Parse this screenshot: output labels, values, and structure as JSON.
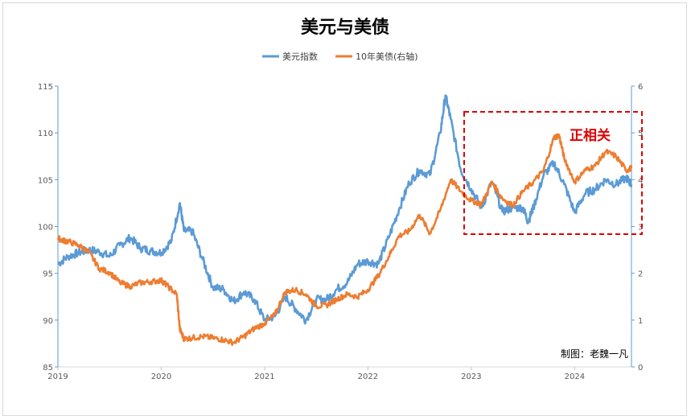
{
  "chart_data": {
    "type": "line",
    "title": "美元与美债",
    "legend_position": "top",
    "grid": false,
    "x_axis": {
      "ticks": [
        "2019",
        "2020",
        "2021",
        "2022",
        "2023",
        "2024"
      ],
      "range": [
        2019.0,
        2024.55
      ]
    },
    "y_left": {
      "ticks": [
        "85",
        "90",
        "95",
        "100",
        "105",
        "110",
        "115"
      ],
      "range": [
        85,
        115
      ]
    },
    "y_right": {
      "ticks": [
        "0",
        "1",
        "2",
        "3",
        "4",
        "5",
        "6"
      ],
      "range": [
        0,
        6
      ]
    },
    "series": [
      {
        "name": "美元指数",
        "axis": "left",
        "color": "#5b9bd5",
        "x": [
          2019.0,
          2019.1,
          2019.2,
          2019.3,
          2019.4,
          2019.5,
          2019.6,
          2019.7,
          2019.8,
          2019.9,
          2020.0,
          2020.1,
          2020.18,
          2020.22,
          2020.3,
          2020.4,
          2020.5,
          2020.6,
          2020.7,
          2020.8,
          2020.9,
          2021.0,
          2021.1,
          2021.2,
          2021.3,
          2021.4,
          2021.5,
          2021.6,
          2021.7,
          2021.8,
          2021.9,
          2022.0,
          2022.1,
          2022.2,
          2022.3,
          2022.4,
          2022.5,
          2022.6,
          2022.7,
          2022.75,
          2022.8,
          2022.9,
          2023.0,
          2023.1,
          2023.2,
          2023.3,
          2023.4,
          2023.5,
          2023.55,
          2023.6,
          2023.7,
          2023.8,
          2023.9,
          2024.0,
          2024.1,
          2024.2,
          2024.3,
          2024.4,
          2024.5,
          2024.55
        ],
        "values": [
          96.0,
          96.8,
          97.2,
          97.5,
          97.3,
          96.8,
          98.0,
          98.8,
          97.7,
          97.4,
          97.2,
          98.5,
          102.5,
          99.5,
          99.5,
          96.5,
          93.5,
          93.3,
          92.0,
          93.0,
          92.2,
          90.0,
          90.4,
          92.5,
          91.2,
          90.0,
          92.2,
          92.2,
          93.3,
          94.0,
          96.0,
          96.3,
          96.0,
          98.8,
          101.8,
          104.7,
          106.0,
          105.5,
          110.0,
          114.0,
          111.5,
          106.0,
          104.0,
          102.0,
          104.8,
          101.6,
          102.0,
          102.0,
          100.5,
          102.0,
          105.5,
          106.8,
          104.5,
          101.5,
          103.5,
          104.0,
          105.0,
          104.5,
          105.2,
          104.5
        ]
      },
      {
        "name": "10年美债(右轴)",
        "axis": "right",
        "color": "#ed7d31",
        "x": [
          2019.0,
          2019.05,
          2019.1,
          2019.2,
          2019.3,
          2019.4,
          2019.5,
          2019.6,
          2019.7,
          2019.8,
          2019.9,
          2020.0,
          2020.05,
          2020.15,
          2020.18,
          2020.22,
          2020.3,
          2020.4,
          2020.5,
          2020.6,
          2020.7,
          2020.8,
          2020.9,
          2021.0,
          2021.1,
          2021.2,
          2021.3,
          2021.4,
          2021.5,
          2021.6,
          2021.7,
          2021.8,
          2021.9,
          2022.0,
          2022.1,
          2022.2,
          2022.3,
          2022.4,
          2022.5,
          2022.6,
          2022.7,
          2022.8,
          2022.9,
          2023.0,
          2023.1,
          2023.2,
          2023.3,
          2023.4,
          2023.5,
          2023.6,
          2023.7,
          2023.8,
          2023.85,
          2023.9,
          2024.0,
          2024.1,
          2024.2,
          2024.3,
          2024.4,
          2024.5,
          2024.55
        ],
        "values": [
          2.75,
          2.7,
          2.68,
          2.6,
          2.45,
          2.1,
          2.02,
          1.8,
          1.72,
          1.8,
          1.82,
          1.85,
          1.75,
          1.55,
          0.8,
          0.6,
          0.62,
          0.65,
          0.62,
          0.58,
          0.52,
          0.65,
          0.82,
          0.93,
          1.12,
          1.6,
          1.65,
          1.55,
          1.3,
          1.32,
          1.45,
          1.55,
          1.5,
          1.65,
          1.95,
          2.35,
          2.8,
          2.9,
          3.25,
          2.85,
          3.35,
          4.0,
          3.75,
          3.55,
          3.48,
          3.95,
          3.6,
          3.45,
          3.75,
          3.95,
          4.2,
          4.9,
          4.95,
          4.45,
          3.95,
          4.2,
          4.3,
          4.6,
          4.5,
          4.2,
          4.25
        ]
      }
    ],
    "annotation": "正相关",
    "credit": "制图：老魏一凡"
  }
}
